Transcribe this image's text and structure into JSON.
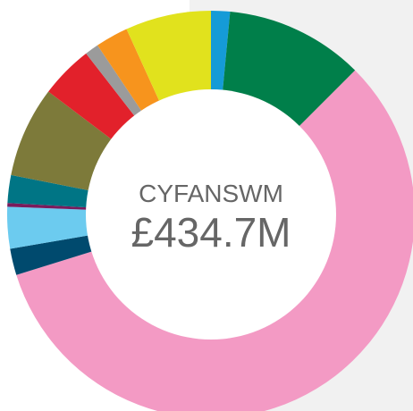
{
  "chart_data": {
    "type": "donut",
    "title": "CYFANSWM",
    "total_label": "£434.7M",
    "values": [
      1.5,
      11,
      57.7,
      2.1,
      3.3,
      0.3,
      2.2,
      7.2,
      4.2,
      1.1,
      2.6,
      6.8
    ],
    "colors": [
      "#159bd7",
      "#007f4a",
      "#f39ac4",
      "#004a6e",
      "#6ccbef",
      "#7a1b5c",
      "#007585",
      "#7d7a3a",
      "#e2212b",
      "#9b9b9b",
      "#f7941d",
      "#e1e21d"
    ]
  }
}
